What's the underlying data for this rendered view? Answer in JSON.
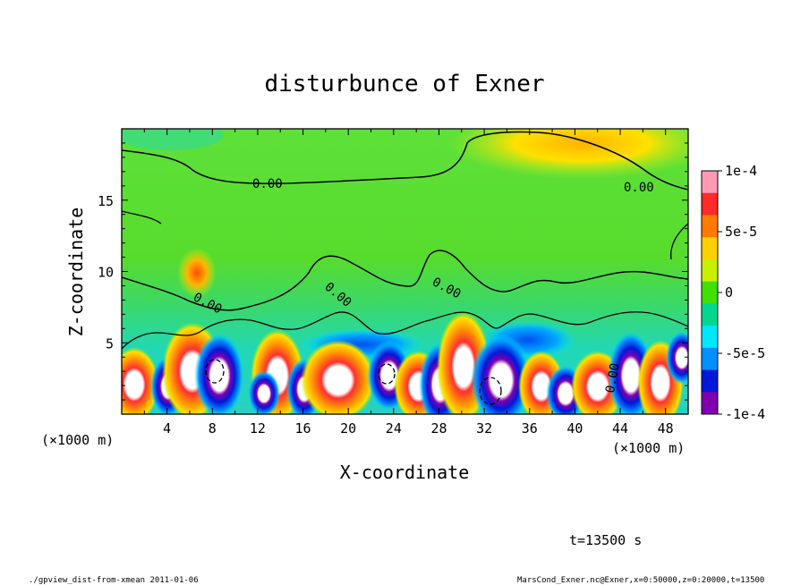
{
  "chart_data": {
    "type": "heatmap",
    "title": "disturbunce of Exner",
    "xlabel": "X-coordinate",
    "ylabel": "Z-coordinate",
    "x_unit": "(×1000 m)",
    "y_unit": "(×1000 m)",
    "xlim": [
      0,
      50
    ],
    "ylim": [
      0,
      20
    ],
    "x_ticks": [
      "4",
      "8",
      "12",
      "16",
      "20",
      "24",
      "28",
      "32",
      "36",
      "40",
      "44",
      "48"
    ],
    "y_ticks": [
      "5",
      "10",
      "15"
    ],
    "colorbar": {
      "min": -0.0001,
      "max": 0.0001,
      "labels": [
        "1e-4",
        "5e-5",
        "0",
        "-5e-5",
        "-1e-4"
      ],
      "colors": [
        "#ff9ab4",
        "#ff2a2a",
        "#ff7a00",
        "#ffd000",
        "#c8f000",
        "#40e000",
        "#00d890",
        "#00e8ff",
        "#0090ff",
        "#0018d8",
        "#8000b0"
      ]
    },
    "contour_labels": [
      "0.00",
      "0.00",
      "0.00",
      "0.00",
      "0.00",
      "0.00"
    ],
    "annotation_time": "t=13500 s"
  },
  "footer": {
    "left": "./gpview_dist-from-xmean  2011-01-06",
    "right": "MarsCond_Exner.nc@Exner,x=0:50000,z=0:20000,t=13500"
  }
}
